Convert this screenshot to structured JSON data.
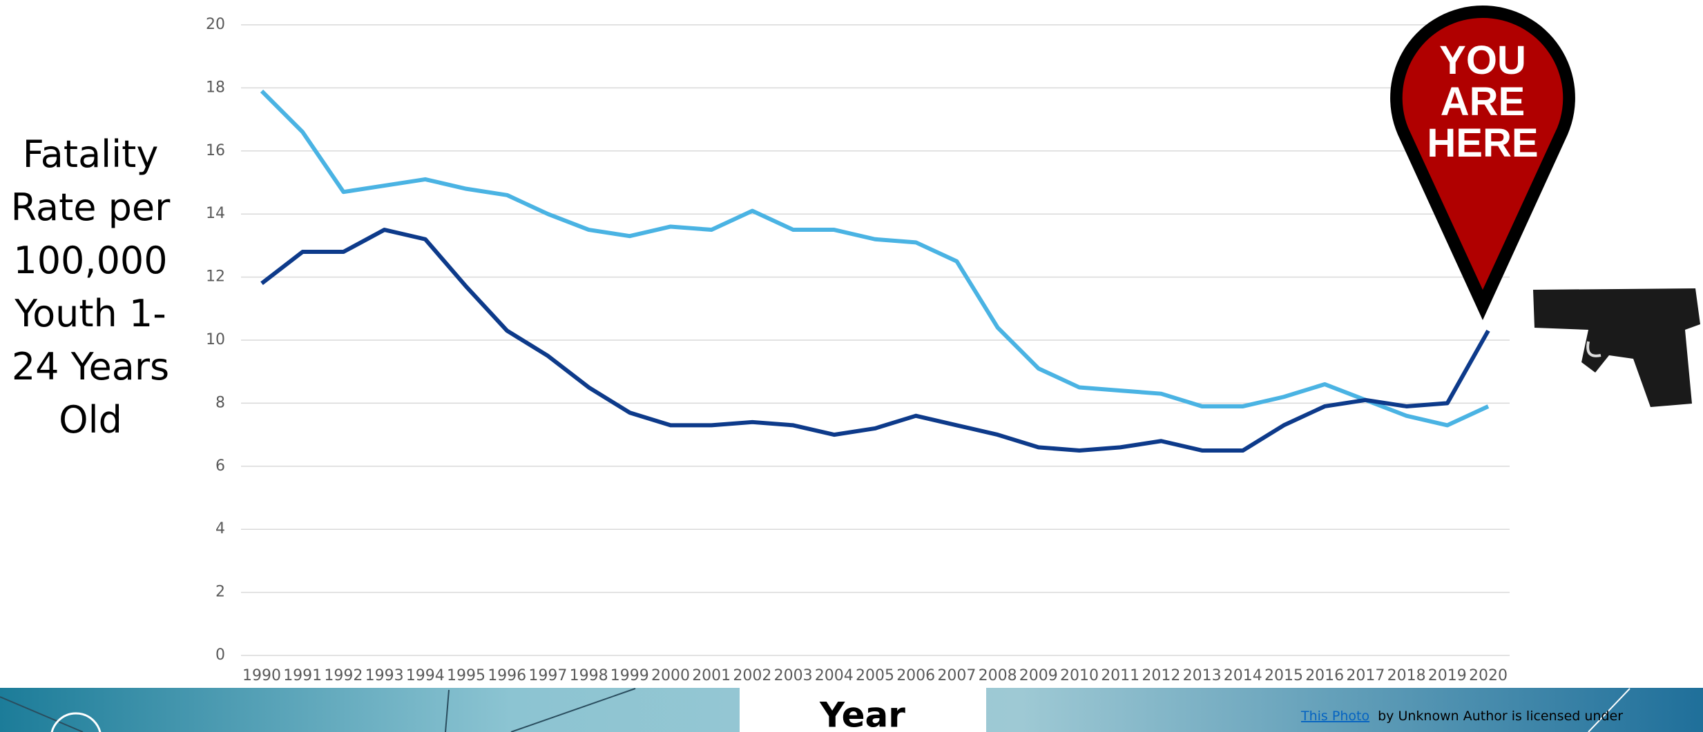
{
  "chart_data": {
    "type": "line",
    "y_label": "Fatality Rate per 100,000 Youth 1-24 Years Old",
    "x_label": "Year",
    "annotation": "YOU ARE HERE",
    "photo_link": "This Photo",
    "photo_credit": "by Unknown Author is licensed under",
    "x": [
      1990,
      1991,
      1992,
      1993,
      1994,
      1995,
      1996,
      1997,
      1998,
      1999,
      2000,
      2001,
      2002,
      2003,
      2004,
      2005,
      2006,
      2007,
      2008,
      2009,
      2010,
      2011,
      2012,
      2013,
      2014,
      2015,
      2016,
      2017,
      2018,
      2019,
      2020
    ],
    "series": [
      {
        "color": "#4ab3e3",
        "values": [
          17.9,
          16.6,
          14.7,
          14.9,
          15.1,
          14.8,
          14.6,
          14.0,
          13.5,
          13.3,
          13.6,
          13.5,
          14.1,
          13.5,
          13.5,
          13.2,
          13.1,
          12.5,
          10.4,
          9.1,
          8.5,
          8.4,
          8.3,
          7.9,
          7.9,
          8.2,
          8.6,
          8.1,
          7.6,
          7.3,
          7.9
        ]
      },
      {
        "color": "#0d3a8a",
        "values": [
          11.8,
          12.8,
          12.8,
          13.5,
          13.2,
          11.7,
          10.3,
          9.5,
          8.5,
          7.7,
          7.3,
          7.3,
          7.4,
          7.3,
          7.0,
          7.2,
          7.6,
          7.3,
          7.0,
          6.6,
          6.5,
          6.6,
          6.8,
          6.5,
          6.5,
          7.3,
          7.9,
          8.1,
          7.9,
          8.0,
          10.3
        ]
      }
    ],
    "ylim": [
      0,
      20
    ],
    "yticks": [
      0,
      2,
      4,
      6,
      8,
      10,
      12,
      14,
      16,
      18,
      20
    ],
    "grid": true
  }
}
